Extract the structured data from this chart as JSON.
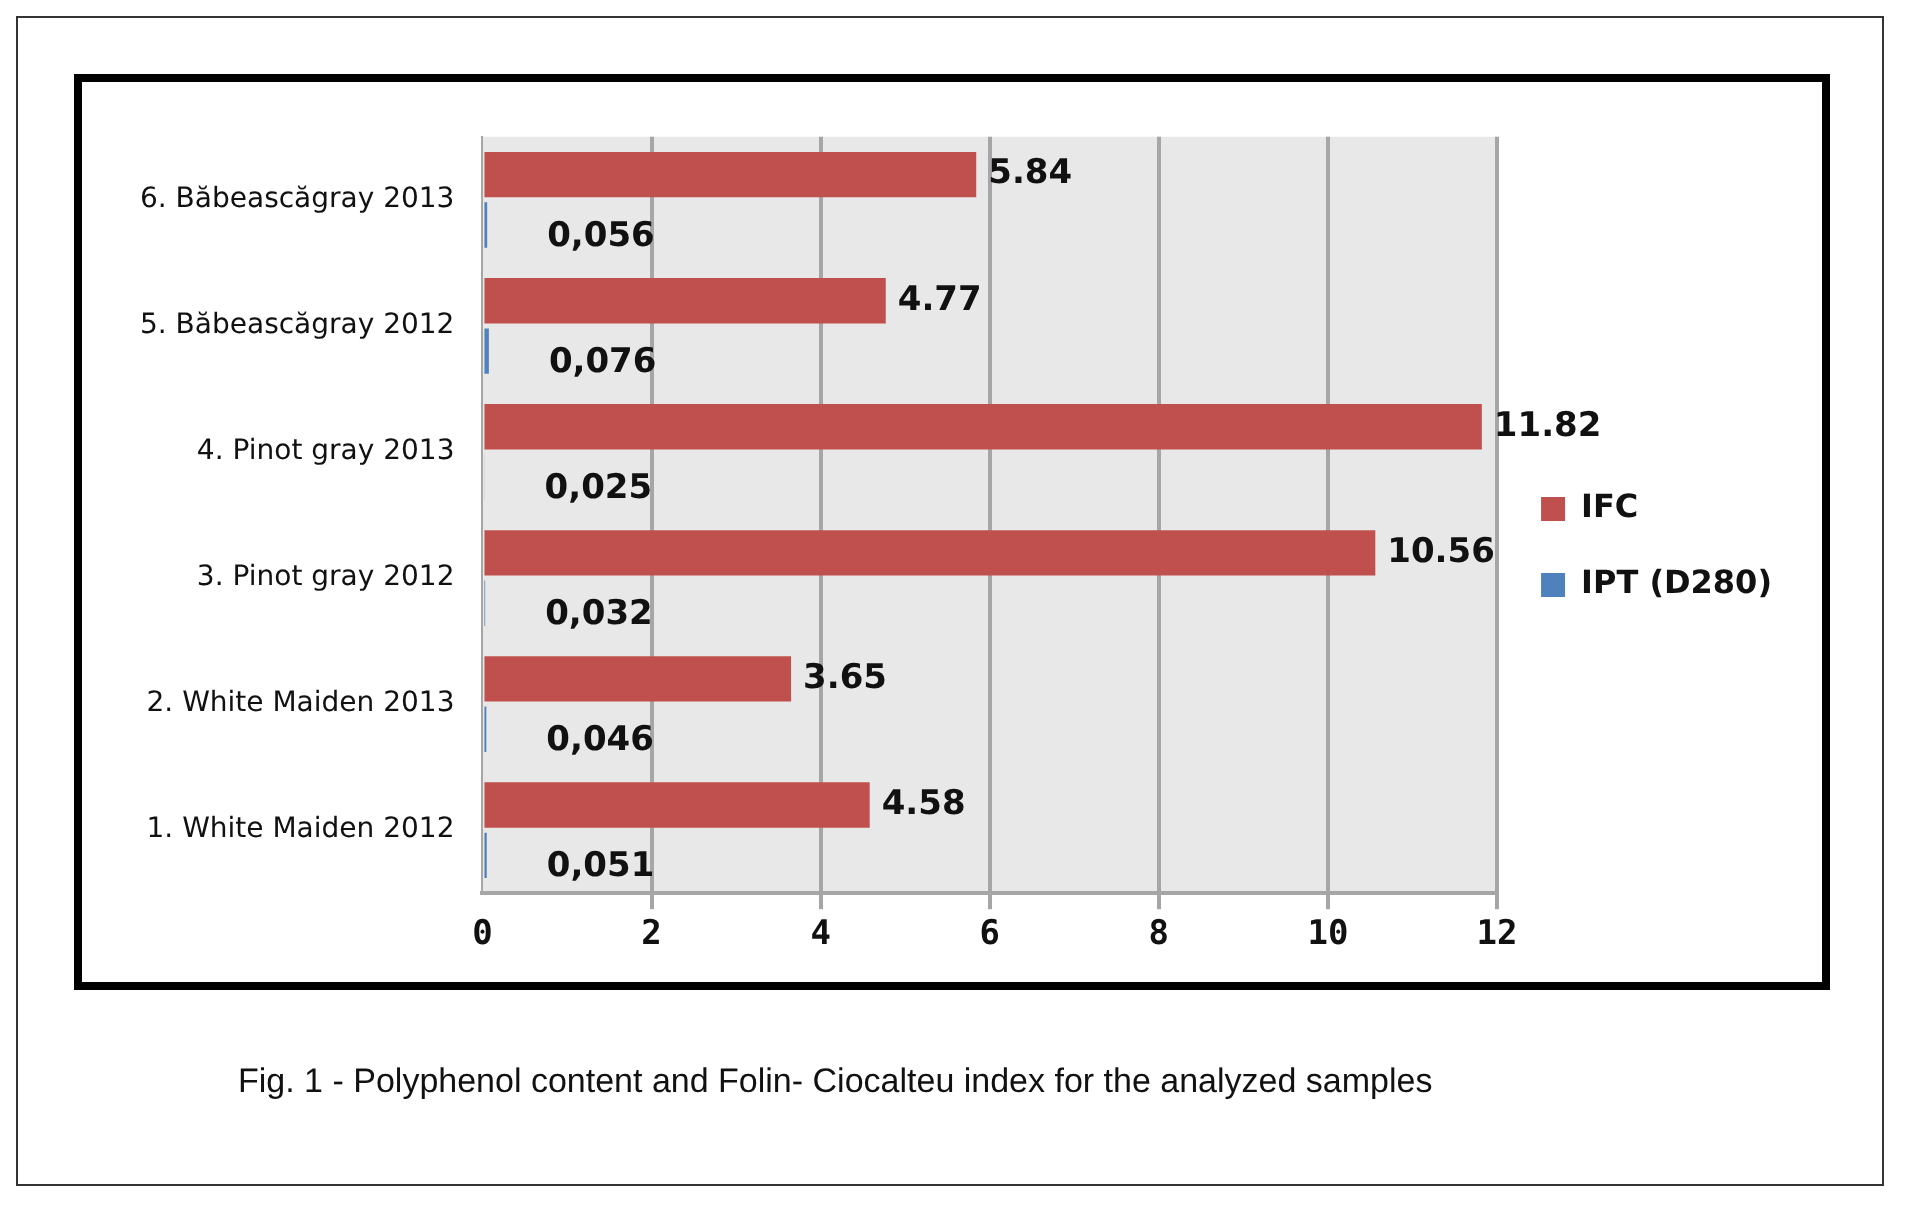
{
  "chart_data": {
    "type": "bar",
    "orientation": "horizontal",
    "categories": [
      "6. Băbeascăgray 2013",
      "5. Băbeascăgray 2012",
      "4. Pinot gray 2013",
      "3. Pinot gray 2012",
      "2. White Maiden 2013",
      "1. White Maiden 2012"
    ],
    "series": [
      {
        "name": "IFC",
        "color": "#c0504d",
        "values": [
          5.84,
          4.77,
          11.82,
          10.56,
          3.65,
          4.58
        ],
        "value_labels": [
          "5.84",
          "4.77",
          "11.82",
          "10.56",
          "3.65",
          "4.58"
        ]
      },
      {
        "name": "IPT (D280)",
        "color": "#4f81bd",
        "values": [
          0.056,
          0.076,
          0.025,
          0.032,
          0.046,
          0.051
        ],
        "value_labels": [
          "0,056",
          "0,076",
          "0,025",
          "0,032",
          "0,046",
          "0,051"
        ]
      }
    ],
    "xlim": [
      0,
      12
    ],
    "xticks": [
      0,
      2,
      4,
      6,
      8,
      10,
      12
    ],
    "grid": "x",
    "legend": "right",
    "annotations": [
      "Fig. 1 - Polyphenol content and Folin- Ciocalteu index for the analyzed samples"
    ]
  }
}
